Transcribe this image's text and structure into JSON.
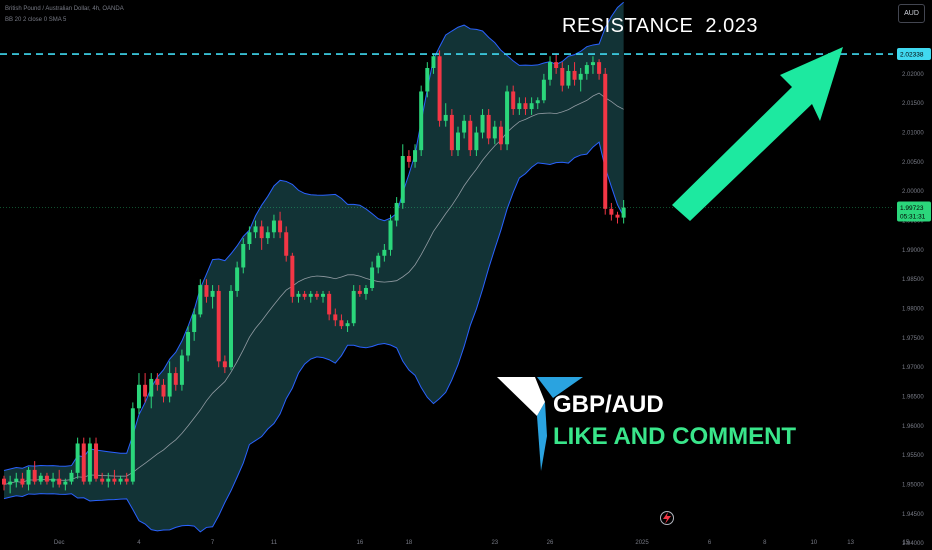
{
  "header": {
    "symbol_line": "British Pound / Australian Dollar, 4h, OANDA",
    "indicator_line": "BB 20 2 close 0 SMA 5"
  },
  "currency_button": "AUD",
  "resistance": {
    "label": "RESISTANCE  2.023",
    "price": 2.02338,
    "price_label": "2.02338"
  },
  "current_price": {
    "price": 1.99723,
    "label": "1.99723",
    "countdown": "05:31:31"
  },
  "overlay_text": {
    "pair": "GBP/AUD",
    "cta": "LIKE AND COMMENT"
  },
  "colors": {
    "background": "#000000",
    "bull": "#2bd67b",
    "bear": "#f23645",
    "band_fill": "#14383c",
    "band_line": "#2962ff",
    "basis_line": "#b2b5be",
    "resistance_line": "#40d9f0",
    "arrow": "#1de9a0",
    "price_tag": "#2bd67b",
    "res_tag": "#40d9f0"
  },
  "icons": {
    "logo": "gbpaud-t-logo-icon",
    "bolt": "lightning-icon",
    "arrow": "up-right-arrow-icon"
  },
  "chart_data": {
    "type": "candlestick",
    "y_ticks": [
      "2.02000",
      "2.01500",
      "2.01000",
      "2.00500",
      "2.00000",
      "1.99500",
      "1.99000",
      "1.98500",
      "1.98000",
      "1.97500",
      "1.97000",
      "1.96500",
      "1.96000",
      "1.95500",
      "1.95000",
      "1.94500",
      "1.94000"
    ],
    "y_tick_values": [
      2.02,
      2.015,
      2.01,
      2.005,
      2.0,
      1.995,
      1.99,
      1.985,
      1.98,
      1.975,
      1.97,
      1.965,
      1.96,
      1.955,
      1.95,
      1.945,
      1.94
    ],
    "x_ticks": [
      {
        "label": "Dec",
        "i": 9
      },
      {
        "label": "4",
        "i": 22
      },
      {
        "label": "7",
        "i": 34
      },
      {
        "label": "11",
        "i": 44
      },
      {
        "label": "16",
        "i": 58
      },
      {
        "label": "18",
        "i": 66
      },
      {
        "label": "23",
        "i": 80
      },
      {
        "label": "26",
        "i": 89
      },
      {
        "label": "2025",
        "i": 104
      },
      {
        "label": "6",
        "i": 115
      },
      {
        "label": "8",
        "i": 124
      },
      {
        "label": "10",
        "i": 132
      },
      {
        "label": "13",
        "i": 138
      },
      {
        "label": "15",
        "i": 147
      }
    ],
    "candles": [
      [
        1.951,
        1.9515,
        1.949,
        1.95
      ],
      [
        1.95,
        1.9515,
        1.9485,
        1.9505
      ],
      [
        1.9505,
        1.952,
        1.9495,
        1.951
      ],
      [
        1.951,
        1.952,
        1.9495,
        1.95
      ],
      [
        1.95,
        1.953,
        1.949,
        1.9525
      ],
      [
        1.9525,
        1.954,
        1.95,
        1.9505
      ],
      [
        1.9505,
        1.952,
        1.95,
        1.9515
      ],
      [
        1.9515,
        1.952,
        1.95,
        1.9505
      ],
      [
        1.9505,
        1.952,
        1.9495,
        1.951
      ],
      [
        1.951,
        1.9525,
        1.9495,
        1.95
      ],
      [
        1.95,
        1.951,
        1.949,
        1.9505
      ],
      [
        1.9505,
        1.9525,
        1.95,
        1.952
      ],
      [
        1.952,
        1.958,
        1.951,
        1.957
      ],
      [
        1.957,
        1.958,
        1.95,
        1.9505
      ],
      [
        1.9505,
        1.958,
        1.95,
        1.957
      ],
      [
        1.957,
        1.958,
        1.9505,
        1.951
      ],
      [
        1.951,
        1.952,
        1.95,
        1.9505
      ],
      [
        1.9505,
        1.952,
        1.9495,
        1.951
      ],
      [
        1.951,
        1.9525,
        1.95,
        1.9505
      ],
      [
        1.9505,
        1.9515,
        1.95,
        1.951
      ],
      [
        1.951,
        1.952,
        1.95,
        1.9505
      ],
      [
        1.9505,
        1.964,
        1.95,
        1.963
      ],
      [
        1.963,
        1.969,
        1.962,
        1.967
      ],
      [
        1.967,
        1.969,
        1.964,
        1.965
      ],
      [
        1.965,
        1.969,
        1.963,
        1.968
      ],
      [
        1.968,
        1.969,
        1.966,
        1.967
      ],
      [
        1.967,
        1.968,
        1.964,
        1.965
      ],
      [
        1.965,
        1.971,
        1.964,
        1.969
      ],
      [
        1.969,
        1.97,
        1.966,
        1.967
      ],
      [
        1.967,
        1.973,
        1.966,
        1.972
      ],
      [
        1.972,
        1.977,
        1.971,
        1.976
      ],
      [
        1.976,
        1.98,
        1.9745,
        1.979
      ],
      [
        1.979,
        1.985,
        1.9785,
        1.984
      ],
      [
        1.984,
        1.985,
        1.981,
        1.982
      ],
      [
        1.982,
        1.984,
        1.98,
        1.983
      ],
      [
        1.983,
        1.984,
        1.97,
        1.971
      ],
      [
        1.971,
        1.972,
        1.969,
        1.97
      ],
      [
        1.97,
        1.984,
        1.9695,
        1.983
      ],
      [
        1.983,
        1.988,
        1.982,
        1.987
      ],
      [
        1.987,
        1.992,
        1.986,
        1.991
      ],
      [
        1.991,
        1.994,
        1.99,
        1.993
      ],
      [
        1.993,
        1.995,
        1.992,
        1.994
      ],
      [
        1.994,
        1.995,
        1.99,
        1.992
      ],
      [
        1.992,
        1.994,
        1.991,
        1.993
      ],
      [
        1.993,
        1.996,
        1.992,
        1.995
      ],
      [
        1.995,
        1.9965,
        1.992,
        1.993
      ],
      [
        1.993,
        1.994,
        1.988,
        1.989
      ],
      [
        1.989,
        1.9895,
        1.981,
        1.982
      ],
      [
        1.982,
        1.983,
        1.981,
        1.9825
      ],
      [
        1.9825,
        1.983,
        1.9815,
        1.982
      ],
      [
        1.982,
        1.983,
        1.981,
        1.9825
      ],
      [
        1.9825,
        1.983,
        1.9815,
        1.982
      ],
      [
        1.982,
        1.983,
        1.981,
        1.9825
      ],
      [
        1.9825,
        1.983,
        1.978,
        1.979
      ],
      [
        1.979,
        1.98,
        1.977,
        1.978
      ],
      [
        1.978,
        1.979,
        1.9765,
        1.977
      ],
      [
        1.977,
        1.978,
        1.976,
        1.9775
      ],
      [
        1.9775,
        1.984,
        1.977,
        1.983
      ],
      [
        1.983,
        1.984,
        1.982,
        1.9825
      ],
      [
        1.9825,
        1.984,
        1.9815,
        1.9835
      ],
      [
        1.9835,
        1.988,
        1.983,
        1.987
      ],
      [
        1.987,
        1.9895,
        1.986,
        1.989
      ],
      [
        1.989,
        1.991,
        1.988,
        1.99
      ],
      [
        1.99,
        1.996,
        1.989,
        1.995
      ],
      [
        1.995,
        1.999,
        1.994,
        1.998
      ],
      [
        1.998,
        2.008,
        1.997,
        2.006
      ],
      [
        2.006,
        2.007,
        2.004,
        2.005
      ],
      [
        2.005,
        2.008,
        2.004,
        2.007
      ],
      [
        2.007,
        2.018,
        2.006,
        2.017
      ],
      [
        2.017,
        2.022,
        2.016,
        2.021
      ],
      [
        2.021,
        2.0235,
        2.02,
        2.023
      ],
      [
        2.023,
        2.024,
        2.011,
        2.012
      ],
      [
        2.012,
        2.015,
        2.011,
        2.013
      ],
      [
        2.013,
        2.014,
        2.006,
        2.007
      ],
      [
        2.007,
        2.011,
        2.006,
        2.01
      ],
      [
        2.01,
        2.013,
        2.009,
        2.012
      ],
      [
        2.012,
        2.013,
        2.006,
        2.007
      ],
      [
        2.007,
        2.011,
        2.006,
        2.01
      ],
      [
        2.01,
        2.014,
        2.009,
        2.013
      ],
      [
        2.013,
        2.014,
        2.008,
        2.009
      ],
      [
        2.009,
        2.012,
        2.008,
        2.011
      ],
      [
        2.011,
        2.012,
        2.007,
        2.008
      ],
      [
        2.008,
        2.018,
        2.007,
        2.017
      ],
      [
        2.017,
        2.018,
        2.013,
        2.014
      ],
      [
        2.014,
        2.016,
        2.013,
        2.015
      ],
      [
        2.015,
        2.016,
        2.013,
        2.014
      ],
      [
        2.014,
        2.016,
        2.013,
        2.015
      ],
      [
        2.015,
        2.016,
        2.014,
        2.0155
      ],
      [
        2.0155,
        2.02,
        2.015,
        2.019
      ],
      [
        2.019,
        2.023,
        2.018,
        2.022
      ],
      [
        2.022,
        2.0235,
        2.02,
        2.021
      ],
      [
        2.021,
        2.022,
        2.017,
        2.018
      ],
      [
        2.018,
        2.0215,
        2.0175,
        2.0205
      ],
      [
        2.0205,
        2.022,
        2.018,
        2.019
      ],
      [
        2.019,
        2.021,
        2.017,
        2.02
      ],
      [
        2.02,
        2.022,
        2.019,
        2.0215
      ],
      [
        2.0215,
        2.023,
        2.02,
        2.022
      ],
      [
        2.022,
        2.0225,
        2.019,
        2.02
      ],
      [
        2.02,
        2.021,
        1.996,
        1.997
      ],
      [
        1.997,
        1.998,
        1.995,
        1.996
      ],
      [
        1.996,
        1.9965,
        1.9945,
        1.9955
      ],
      [
        1.9955,
        1.9985,
        1.9945,
        1.9972
      ]
    ]
  }
}
